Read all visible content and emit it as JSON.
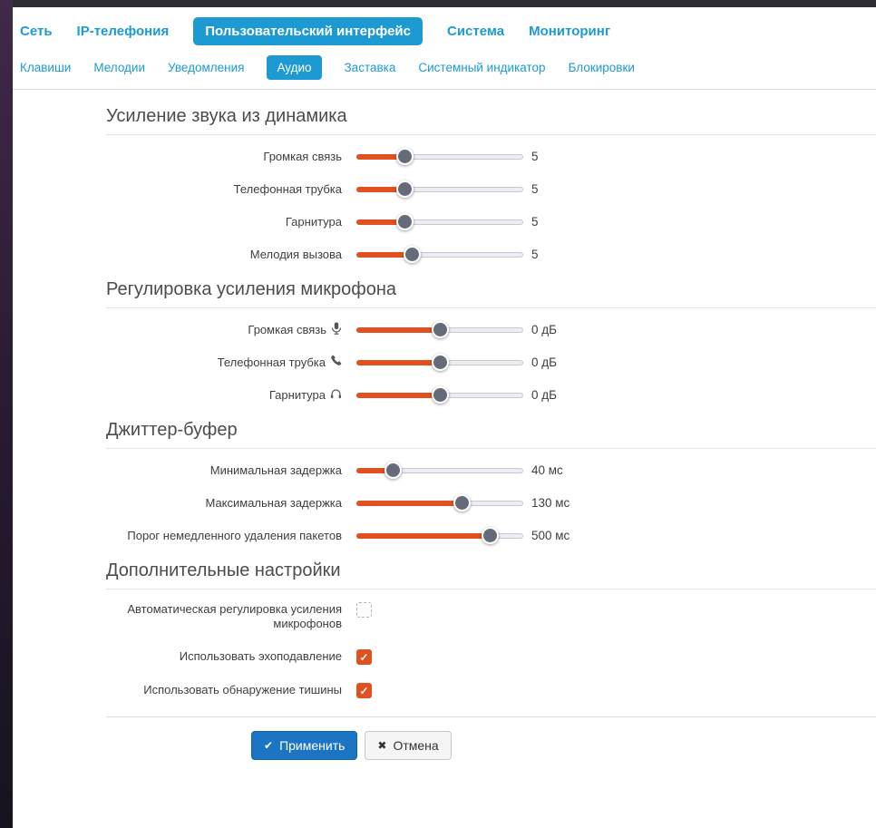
{
  "nav_main": {
    "items": [
      {
        "label": "Сеть",
        "active": false
      },
      {
        "label": "IP-телефония",
        "active": false
      },
      {
        "label": "Пользовательский интерфейс",
        "active": true
      },
      {
        "label": "Система",
        "active": false
      },
      {
        "label": "Мониторинг",
        "active": false
      }
    ]
  },
  "nav_sub": {
    "items": [
      {
        "label": "Клавиши",
        "active": false
      },
      {
        "label": "Мелодии",
        "active": false
      },
      {
        "label": "Уведомления",
        "active": false
      },
      {
        "label": "Аудио",
        "active": true
      },
      {
        "label": "Заставка",
        "active": false
      },
      {
        "label": "Системный индикатор",
        "active": false
      },
      {
        "label": "Блокировки",
        "active": false
      }
    ]
  },
  "sections": [
    {
      "id": "speaker-gain",
      "title": "Усиление звука из динамика",
      "rows": [
        {
          "label": "Громкая связь",
          "icon": null,
          "value": "5",
          "pct": 29
        },
        {
          "label": "Телефонная трубка",
          "icon": null,
          "value": "5",
          "pct": 29
        },
        {
          "label": "Гарнитура",
          "icon": null,
          "value": "5",
          "pct": 29
        },
        {
          "label": "Мелодия вызова",
          "icon": null,
          "value": "5",
          "pct": 33
        }
      ]
    },
    {
      "id": "mic-gain",
      "title": "Регулировка усиления микрофона",
      "rows": [
        {
          "label": "Громкая связь",
          "icon": "microphone-icon",
          "value": "0 дБ",
          "pct": 50
        },
        {
          "label": "Телефонная трубка",
          "icon": "handset-icon",
          "value": "0 дБ",
          "pct": 50
        },
        {
          "label": "Гарнитура",
          "icon": "headphones-icon",
          "value": "0 дБ",
          "pct": 50
        }
      ]
    },
    {
      "id": "jitter-buffer",
      "title": "Джиттер-буфер",
      "rows": [
        {
          "label": "Минимальная задержка",
          "icon": null,
          "value": "40 мс",
          "pct": 22
        },
        {
          "label": "Максимальная задержка",
          "icon": null,
          "value": "130 мс",
          "pct": 63
        },
        {
          "label": "Порог немедленного удаления пакетов",
          "icon": null,
          "value": "500 мс",
          "pct": 80
        }
      ]
    },
    {
      "id": "additional",
      "title": "Дополнительные настройки",
      "checkboxes": [
        {
          "label": "Автоматическая регулировка усиления микрофонов",
          "checked": false
        },
        {
          "label": "Использовать эхоподавление",
          "checked": true
        },
        {
          "label": "Использовать обнаружение тишины",
          "checked": true
        }
      ]
    }
  ],
  "buttons": {
    "apply": "Применить",
    "cancel": "Отмена",
    "apply_icon": "✔",
    "cancel_icon": "✖",
    "check_mark": "✓"
  },
  "colors": {
    "accent_blue": "#1e9ad2",
    "slider_orange": "#e0511f",
    "handle_gray": "#656b78",
    "apply_blue": "#1b74c4"
  }
}
